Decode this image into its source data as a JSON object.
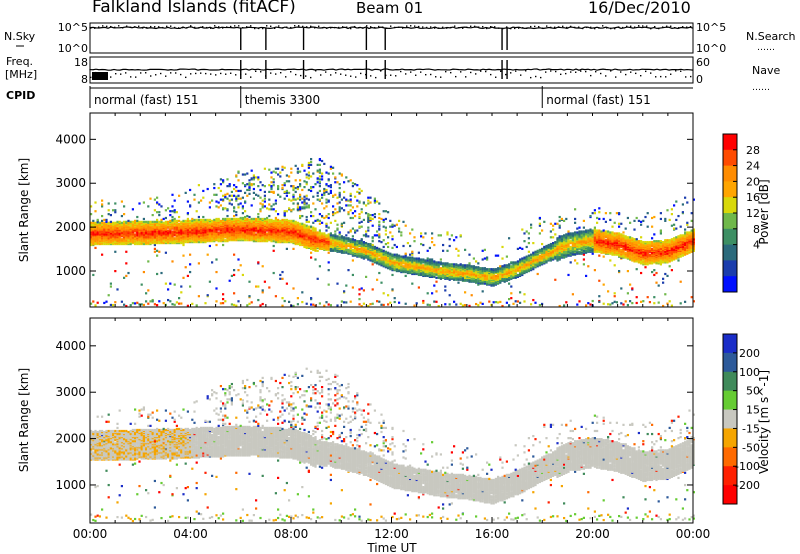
{
  "header": {
    "station": "Falkland Islands (fitACF)",
    "beam": "Beam 01",
    "date": "16/Dec/2010"
  },
  "strip": {
    "nsky_label": "N.Sky",
    "nsky_ticks": [
      "10^5",
      "10^0"
    ],
    "nsearch_label": "N.Search",
    "nsearch_ticks": [
      "10^5",
      "10^0"
    ],
    "freq_label_1": "Freq.",
    "freq_label_2": "[MHz]",
    "freq_ticks": [
      "18",
      "8"
    ],
    "nave_label": "Nave",
    "nave_ticks": [
      "60",
      "0"
    ],
    "cpid_label": "CPID",
    "cpid_segments": [
      {
        "start_hour": 0,
        "label": "normal (fast) 151"
      },
      {
        "start_hour": 6,
        "label": "themis 3300"
      },
      {
        "start_hour": 18,
        "label": "normal (fast) 151"
      }
    ]
  },
  "x_axis": {
    "label": "Time UT",
    "ticks": [
      "00:00",
      "04:00",
      "08:00",
      "12:00",
      "16:00",
      "20:00",
      "00:00"
    ]
  },
  "power_colorbar": {
    "label": "Power [dB]",
    "ticks": [
      "28",
      "24",
      "20",
      "16",
      "12",
      "8",
      "4"
    ],
    "colors": [
      "#ff0000",
      "#ff4b00",
      "#ff8c00",
      "#ffa500",
      "#d8d80a",
      "#6fb84a",
      "#3d8f64",
      "#2b6a7c",
      "#1b3dad",
      "#0010ff"
    ]
  },
  "velocity_colorbar": {
    "label": "Velocity [m s^-1]",
    "ticks": [
      "200",
      "100",
      "50",
      "15",
      "-15",
      "-50",
      "-100",
      "-200"
    ],
    "colors": [
      "#1a2dc8",
      "#2d5a9a",
      "#3f8a5a",
      "#66cc33",
      "#c8c8c0",
      "#f5a500",
      "#ff6a00",
      "#ff2000",
      "#ff0000"
    ]
  },
  "chart_data": [
    {
      "type": "heatmap",
      "panel": "power",
      "ylabel": "Slant Range [km]",
      "ylim": [
        180,
        4600
      ],
      "y_ticks": [
        1000,
        2000,
        3000,
        4000
      ],
      "xlim": [
        0,
        24
      ],
      "unit": "dB",
      "main_band_center_km": [
        [
          0,
          1850
        ],
        [
          3,
          1880
        ],
        [
          6,
          1950
        ],
        [
          8,
          1900
        ],
        [
          9,
          1700
        ],
        [
          10,
          1600
        ],
        [
          11,
          1450
        ],
        [
          12,
          1200
        ],
        [
          13,
          1100
        ],
        [
          14,
          1000
        ],
        [
          15,
          950
        ],
        [
          16,
          850
        ],
        [
          17,
          1050
        ],
        [
          18,
          1350
        ],
        [
          19,
          1600
        ],
        [
          20,
          1700
        ],
        [
          21,
          1600
        ],
        [
          22,
          1400
        ],
        [
          23,
          1450
        ],
        [
          24,
          1700
        ]
      ],
      "scatter_top_km": [
        [
          0,
          2600
        ],
        [
          3,
          2700
        ],
        [
          6,
          3300
        ],
        [
          8,
          3400
        ],
        [
          9,
          3600
        ],
        [
          10,
          3300
        ],
        [
          11,
          2800
        ],
        [
          12,
          2300
        ],
        [
          13,
          2000
        ],
        [
          14,
          1900
        ],
        [
          15,
          1800
        ],
        [
          16,
          1500
        ],
        [
          17,
          1900
        ],
        [
          18,
          2300
        ],
        [
          19,
          2400
        ],
        [
          20,
          2500
        ],
        [
          21,
          2400
        ],
        [
          22,
          2300
        ],
        [
          23,
          2500
        ],
        [
          24,
          2800
        ]
      ]
    },
    {
      "type": "heatmap",
      "panel": "velocity",
      "ylabel": "Slant Range [km]",
      "ylim": [
        180,
        4600
      ],
      "y_ticks": [
        1000,
        2000,
        3000,
        4000
      ],
      "xlim": [
        0,
        24
      ],
      "unit": "m s^-1",
      "dominant_band": "-15 to 15"
    }
  ]
}
